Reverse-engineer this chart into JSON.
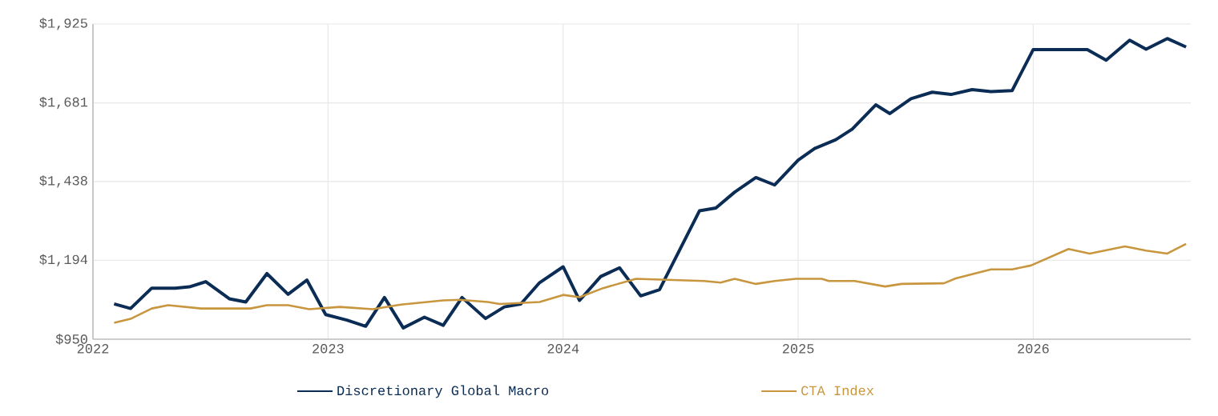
{
  "chart_data": {
    "type": "line",
    "xlim": [
      2022,
      2026.67
    ],
    "ylim": [
      950,
      1925
    ],
    "xticks": [
      2022,
      2023,
      2024,
      2025,
      2026
    ],
    "yticks": [
      {
        "value": 950,
        "label": "$950"
      },
      {
        "value": 1194,
        "label": "$1,194"
      },
      {
        "value": 1438,
        "label": "$1,438"
      },
      {
        "value": 1681,
        "label": "$1,681"
      },
      {
        "value": 1925,
        "label": "$1,925"
      }
    ],
    "grid": true,
    "legend": "bottom",
    "series": [
      {
        "name": "Discretionary Global Macro",
        "color": "#0b2c55",
        "x": [
          2022.09,
          2022.16,
          2022.25,
          2022.35,
          2022.41,
          2022.48,
          2022.58,
          2022.65,
          2022.74,
          2022.83,
          2022.91,
          2022.99,
          2023.08,
          2023.16,
          2023.24,
          2023.32,
          2023.41,
          2023.49,
          2023.57,
          2023.67,
          2023.75,
          2023.82,
          2023.9,
          2024.0,
          2024.07,
          2024.16,
          2024.24,
          2024.33,
          2024.41,
          2024.58,
          2024.65,
          2024.73,
          2024.82,
          2024.9,
          2025.0,
          2025.07,
          2025.16,
          2025.23,
          2025.33,
          2025.39,
          2025.48,
          2025.57,
          2025.65,
          2025.74,
          2025.82,
          2025.91,
          2026.0,
          2026.23,
          2026.31,
          2026.41,
          2026.48,
          2026.57,
          2026.65
        ],
        "values": [
          1059,
          1045,
          1108,
          1108,
          1112,
          1128,
          1075,
          1065,
          1153,
          1089,
          1133,
          1026,
          1009,
          990,
          1079,
          985,
          1018,
          993,
          1079,
          1014,
          1050,
          1059,
          1125,
          1174,
          1070,
          1144,
          1171,
          1084,
          1103,
          1347,
          1356,
          1405,
          1450,
          1427,
          1504,
          1540,
          1567,
          1600,
          1675,
          1648,
          1694,
          1714,
          1707,
          1722,
          1716,
          1719,
          1846,
          1846,
          1813,
          1875,
          1847,
          1880,
          1854
        ]
      },
      {
        "name": "CTA Index",
        "color": "#c8963e",
        "x": [
          2022.09,
          2022.16,
          2022.25,
          2022.32,
          2022.46,
          2022.67,
          2022.74,
          2022.83,
          2022.92,
          2023.05,
          2023.19,
          2023.31,
          2023.49,
          2023.56,
          2023.68,
          2023.73,
          2023.9,
          2024.0,
          2024.07,
          2024.17,
          2024.31,
          2024.6,
          2024.67,
          2024.73,
          2024.82,
          2024.9,
          2024.99,
          2025.1,
          2025.13,
          2025.24,
          2025.37,
          2025.44,
          2025.62,
          2025.67,
          2025.82,
          2025.91,
          2025.99,
          2026.15,
          2026.24,
          2026.39,
          2026.48,
          2026.57,
          2026.65
        ],
        "values": [
          1001,
          1013,
          1045,
          1055,
          1045,
          1045,
          1055,
          1055,
          1043,
          1050,
          1043,
          1057,
          1070,
          1072,
          1065,
          1059,
          1065,
          1087,
          1080,
          1108,
          1137,
          1130,
          1125,
          1137,
          1121,
          1130,
          1137,
          1137,
          1130,
          1130,
          1113,
          1121,
          1123,
          1138,
          1166,
          1166,
          1178,
          1229,
          1215,
          1237,
          1224,
          1215,
          1245
        ]
      }
    ]
  }
}
